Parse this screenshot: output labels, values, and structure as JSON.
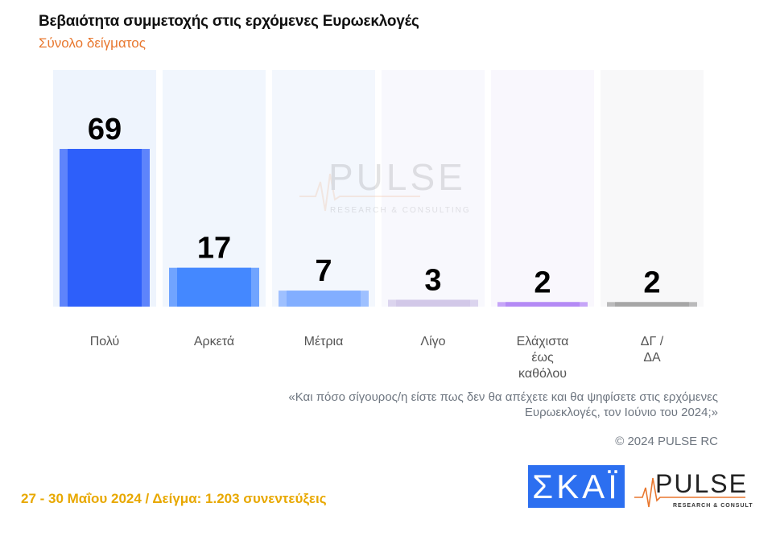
{
  "chart_data": {
    "type": "bar",
    "title": "Βεβαιότητα συμμετοχής στις ερχόμενες Ευρωεκλογές",
    "subtitle": "Σύνολο δείγματος",
    "categories": [
      "Πολύ",
      "Αρκετά",
      "Μέτρια",
      "Λίγο",
      "Ελάχιστα έως καθόλου",
      "ΔΓ / ΔΑ"
    ],
    "category_lines": [
      [
        "Πολύ"
      ],
      [
        "Αρκετά"
      ],
      [
        "Μέτρια"
      ],
      [
        "Λίγο"
      ],
      [
        "Ελάχιστα",
        "έως",
        "καθόλου"
      ],
      [
        "ΔΓ /",
        "ΔΑ"
      ]
    ],
    "values": [
      69,
      17,
      7,
      3,
      2,
      2
    ],
    "colors": [
      "#2d5ffa",
      "#4488ff",
      "#82aeff",
      "#d2c8e8",
      "#b48af5",
      "#a6a6a6"
    ],
    "column_backgrounds": [
      "#eef4fd",
      "#f1f6fd",
      "#f3f7fd",
      "#f8f8fd",
      "#f9f7fd",
      "#f8f8f9"
    ],
    "ylim": [
      0,
      100
    ],
    "grid": false,
    "data_labels": true,
    "xlabel": "",
    "ylabel": ""
  },
  "question": "«Και πόσο σίγουρος/η είστε πως δεν θα απέχετε και θα ψηφίσετε στις ερχόμενες Ευρωεκλογές, τον Ιούνιο του 2024;»",
  "copyright": "© 2024 PULSE RC",
  "footer": "27 - 30  Μαΐου 2024  /  Δείγμα:  1.203 συνεντεύξεις",
  "logos": {
    "skai": "ΣΚΑΪ",
    "pulse": "PULSE",
    "pulse_tagline": "RESEARCH & CONSULTING"
  },
  "watermark": {
    "text": "PULSE",
    "tagline": "RESEARCH & CONSULTING"
  }
}
